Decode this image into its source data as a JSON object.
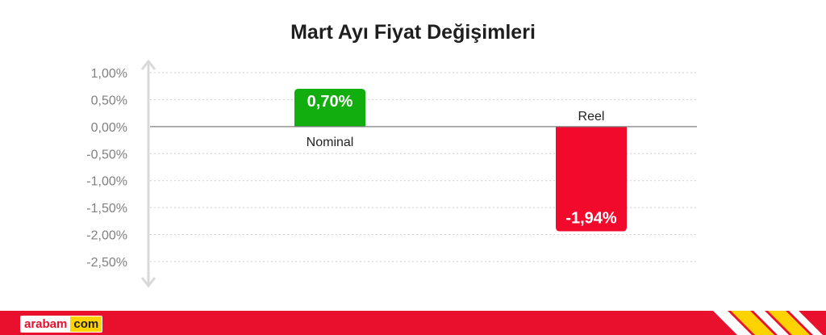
{
  "chart_data": {
    "type": "bar",
    "title": "Mart Ayı Fiyat Değişimleri",
    "categories": [
      "Nominal",
      "Reel"
    ],
    "values": [
      0.7,
      -1.94
    ],
    "value_labels": [
      "0,70%",
      "-1,94%"
    ],
    "colors": [
      "#12ad0f",
      "#f20a2c"
    ],
    "y_ticks": [
      1.0,
      0.5,
      0.0,
      -0.5,
      -1.0,
      -1.5,
      -2.0,
      -2.5
    ],
    "y_tick_labels": [
      "1,00%",
      "0,50%",
      "0,00%",
      "-0,50%",
      "-1,00%",
      "-1,50%",
      "-2,00%",
      "-2,50%"
    ],
    "ylim": [
      -2.5,
      1.0
    ],
    "grid": true,
    "xlabel": "",
    "ylabel": ""
  },
  "footer": {
    "logo_left": "arabam",
    "logo_right": "com",
    "brand_red": "#e8102c",
    "brand_yellow": "#ffd200"
  }
}
